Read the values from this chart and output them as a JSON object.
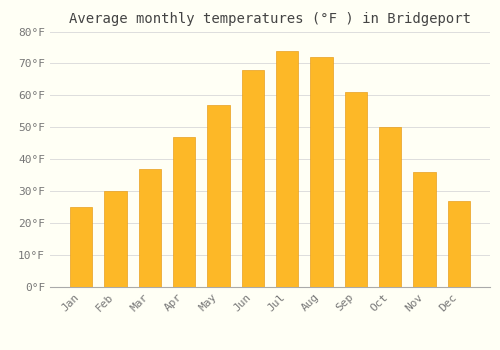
{
  "title": "Average monthly temperatures (°F ) in Bridgeport",
  "months": [
    "Jan",
    "Feb",
    "Mar",
    "Apr",
    "May",
    "Jun",
    "Jul",
    "Aug",
    "Sep",
    "Oct",
    "Nov",
    "Dec"
  ],
  "values": [
    25,
    30,
    37,
    47,
    57,
    68,
    74,
    72,
    61,
    50,
    36,
    27
  ],
  "bar_color": "#FDB827",
  "bar_edge_color": "#E8A020",
  "background_color": "#FFFFF5",
  "grid_color": "#DDDDDD",
  "ylim": [
    0,
    80
  ],
  "yticks": [
    0,
    10,
    20,
    30,
    40,
    50,
    60,
    70,
    80
  ],
  "ytick_labels": [
    "0°F",
    "10°F",
    "20°F",
    "30°F",
    "40°F",
    "50°F",
    "60°F",
    "70°F",
    "80°F"
  ],
  "title_fontsize": 10,
  "tick_fontsize": 8,
  "title_color": "#444444",
  "tick_color": "#777777",
  "font_family": "monospace",
  "bar_width": 0.65
}
